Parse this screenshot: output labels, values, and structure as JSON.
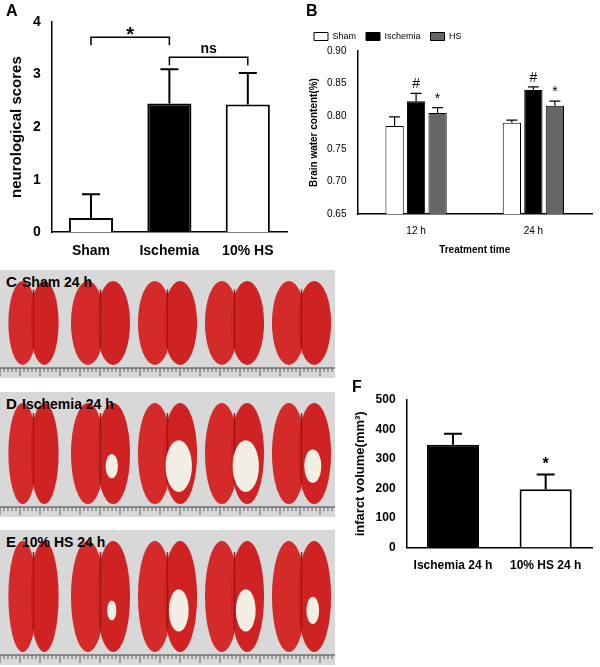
{
  "chart_data": [
    {
      "panel_label": "A",
      "type": "bar",
      "categories": [
        "Sham",
        "Ischemia",
        "10% HS"
      ],
      "values": [
        0.27,
        2.45,
        2.43
      ],
      "errors": [
        0.45,
        0.65,
        0.6
      ],
      "colors": [
        "#ffffff",
        "#000000",
        "#ffffff"
      ],
      "y_label": "neurological scores",
      "ylim": [
        0,
        4
      ],
      "yticks": [
        0,
        1,
        2,
        3,
        4
      ],
      "grid": false,
      "annotations": [
        {
          "text": "*",
          "from": "Sham",
          "to": "Ischemia"
        },
        {
          "text": "ns",
          "from": "Ischemia",
          "to": "10% HS"
        }
      ]
    },
    {
      "panel_label": "B",
      "type": "bar",
      "categories": [
        "12 h",
        "24 h"
      ],
      "series": [
        {
          "name": "Sham",
          "color": "#ffffff",
          "values": [
            0.785,
            0.79
          ],
          "errors": [
            0.014,
            0.004
          ]
        },
        {
          "name": "Ischemia",
          "color": "#000000",
          "values": [
            0.823,
            0.84
          ],
          "errors": [
            0.012,
            0.005
          ]
        },
        {
          "name": "HS",
          "color": "#666666",
          "values": [
            0.805,
            0.816
          ],
          "errors": [
            0.008,
            0.007
          ]
        }
      ],
      "x_label": "Treatment time",
      "y_label": "Brain water content(%)",
      "ylim": [
        0.65,
        0.9
      ],
      "yticks": [
        0.65,
        {
          "value": 0.7,
          "label": "0.70"
        },
        0.75,
        {
          "value": 0.8,
          "label": "0.80"
        },
        0.85,
        {
          "value": 0.9,
          "label": "0.90"
        }
      ],
      "grid": false,
      "legend": "top-left",
      "annotations": [
        {
          "text": "#",
          "series": "Ischemia",
          "category": "12 h"
        },
        {
          "text": "#",
          "series": "Ischemia",
          "category": "24 h"
        },
        {
          "text": "*",
          "series": "HS",
          "category": "12 h"
        },
        {
          "text": "*",
          "series": "HS",
          "category": "24 h"
        }
      ]
    },
    {
      "panel_label": "F",
      "type": "bar",
      "categories": [
        "Ischemia 24 h",
        "10% HS 24 h"
      ],
      "values": [
        348,
        198
      ],
      "errors": [
        38,
        50
      ],
      "colors": [
        "#000000",
        "#ffffff"
      ],
      "y_label": "infarct volume(mm³)",
      "ylim": [
        0,
        500
      ],
      "yticks": [
        0,
        100,
        200,
        300,
        400,
        500
      ],
      "grid": false,
      "annotations": [
        {
          "text": "*",
          "category": "10% HS 24 h"
        }
      ]
    }
  ],
  "photos": [
    {
      "panel_label": "C",
      "caption": "Sham 24 h"
    },
    {
      "panel_label": "D",
      "caption": "Ischemia 24 h"
    },
    {
      "panel_label": "E",
      "caption": "10% HS 24 h"
    }
  ]
}
